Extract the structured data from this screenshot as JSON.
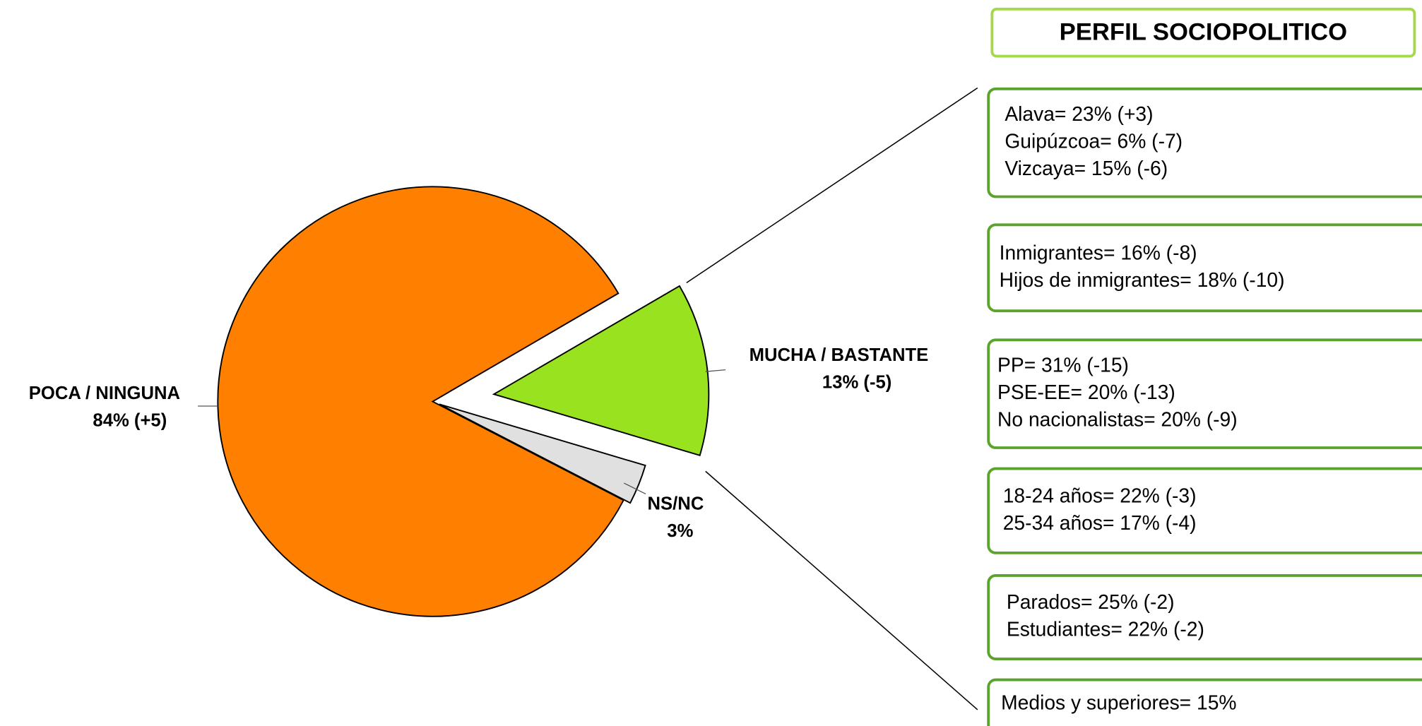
{
  "chart_data": {
    "type": "pie",
    "categories": [
      "POCA / NINGUNA",
      "MUCHA / BASTANTE",
      "NS/NC"
    ],
    "values": [
      84,
      13,
      3
    ],
    "value_labels": [
      "84% (+5)",
      "13% (-5)",
      "3%"
    ],
    "colors": [
      "#ff8000",
      "#99e21f",
      "#e0e0e0"
    ]
  },
  "profile": {
    "title": "PERFIL SOCIOPOLITICO",
    "boxes": [
      [
        "Alava= 23% (+3)",
        "Guipúzcoa= 6% (-7)",
        "Vizcaya= 15% (-6)"
      ],
      [
        "Inmigrantes= 16% (-8)",
        "Hijos de inmigrantes= 18% (-10)"
      ],
      [
        "PP= 31% (-15)",
        "PSE-EE= 20% (-13)",
        "No nacionalistas= 20% (-9)"
      ],
      [
        "18-24 años= 22% (-3)",
        "25-34 años= 17% (-4)"
      ],
      [
        "Parados= 25% (-2)",
        "Estudiantes= 22% (-2)"
      ],
      [
        "Medios y superiores= 15%"
      ]
    ]
  }
}
